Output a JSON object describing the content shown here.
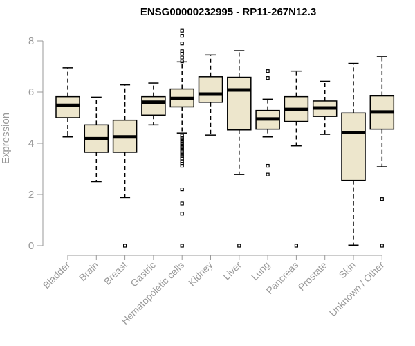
{
  "chart_data": {
    "type": "box",
    "title": "ENSG00000232995 - RP11-267N12.3",
    "xlabel": "",
    "ylabel": "Expression",
    "ylim": [
      0,
      8.4
    ],
    "yticks": [
      0,
      2,
      4,
      6,
      8
    ],
    "colors": {
      "box_fill": "#ede6cc",
      "box_stroke": "#000000",
      "axis": "#999999"
    },
    "categories": [
      "Bladder",
      "Brain",
      "Breast",
      "Gastric",
      "Hematopoietic cells",
      "Kidney",
      "Liver",
      "Lung",
      "Pancreas",
      "Prostate",
      "Skin",
      "Unknown / Other"
    ],
    "boxes": [
      {
        "category": "Bladder",
        "whisker_low": 4.25,
        "q1": 5.0,
        "median": 5.48,
        "q3": 5.82,
        "whisker_high": 6.95,
        "outliers": []
      },
      {
        "category": "Brain",
        "whisker_low": 2.5,
        "q1": 3.65,
        "median": 4.18,
        "q3": 4.72,
        "whisker_high": 5.8,
        "outliers": []
      },
      {
        "category": "Breast",
        "whisker_low": 1.88,
        "q1": 3.65,
        "median": 4.25,
        "q3": 4.9,
        "whisker_high": 6.28,
        "outliers": [
          0.0
        ]
      },
      {
        "category": "Gastric",
        "whisker_low": 4.72,
        "q1": 5.1,
        "median": 5.6,
        "q3": 5.82,
        "whisker_high": 6.35,
        "outliers": []
      },
      {
        "category": "Hematopoietic cells",
        "whisker_low": 4.4,
        "q1": 5.42,
        "median": 5.75,
        "q3": 6.12,
        "whisker_high": 7.18,
        "outliers": [
          8.4,
          8.2,
          7.9,
          7.6,
          7.5,
          7.35,
          7.2,
          4.3,
          4.22,
          4.15,
          4.08,
          4.0,
          3.92,
          3.85,
          3.78,
          3.7,
          3.62,
          3.55,
          3.48,
          3.4,
          3.3,
          3.2,
          3.12,
          2.2,
          1.65,
          1.25,
          0.0
        ]
      },
      {
        "category": "Kidney",
        "whisker_low": 4.32,
        "q1": 5.6,
        "median": 5.92,
        "q3": 6.6,
        "whisker_high": 7.45,
        "outliers": []
      },
      {
        "category": "Liver",
        "whisker_low": 2.78,
        "q1": 4.52,
        "median": 6.08,
        "q3": 6.58,
        "whisker_high": 7.62,
        "outliers": [
          0.0
        ]
      },
      {
        "category": "Lung",
        "whisker_low": 4.25,
        "q1": 4.55,
        "median": 4.95,
        "q3": 5.28,
        "whisker_high": 5.72,
        "outliers": [
          6.82,
          6.55,
          3.12,
          2.78
        ]
      },
      {
        "category": "Pancreas",
        "whisker_low": 3.9,
        "q1": 4.85,
        "median": 5.32,
        "q3": 5.82,
        "whisker_high": 6.82,
        "outliers": [
          0.0
        ]
      },
      {
        "category": "Prostate",
        "whisker_low": 4.35,
        "q1": 5.05,
        "median": 5.38,
        "q3": 5.65,
        "whisker_high": 6.42,
        "outliers": []
      },
      {
        "category": "Skin",
        "whisker_low": 0.02,
        "q1": 2.55,
        "median": 4.42,
        "q3": 5.18,
        "whisker_high": 7.12,
        "outliers": []
      },
      {
        "category": "Unknown / Other",
        "whisker_low": 3.08,
        "q1": 4.55,
        "median": 5.22,
        "q3": 5.85,
        "whisker_high": 7.38,
        "outliers": [
          1.82,
          0.0
        ]
      }
    ]
  }
}
